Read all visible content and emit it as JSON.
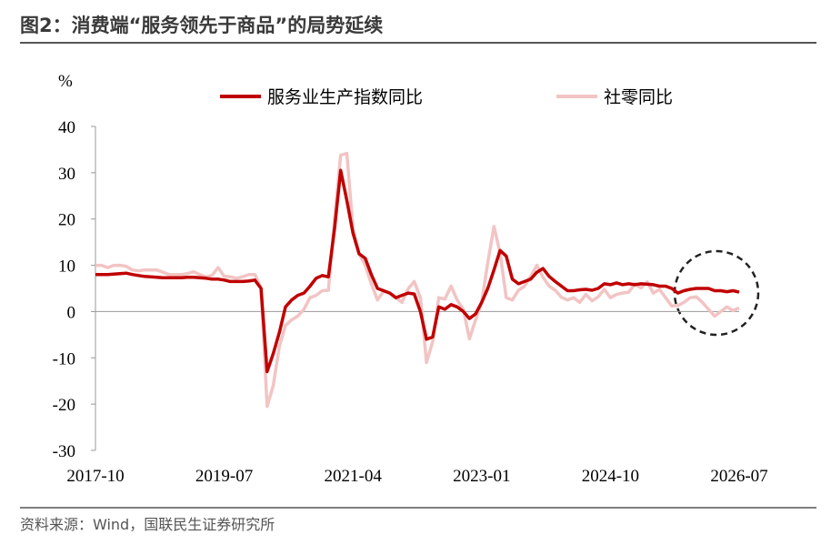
{
  "header": {
    "title": "图2：消费端“服务领先于商品”的局势延续"
  },
  "chart_data": {
    "type": "line",
    "y_unit": "%",
    "categories": [
      "2017-10",
      null,
      null,
      null,
      null,
      null,
      null,
      null,
      null,
      null,
      null,
      null,
      null,
      null,
      null,
      null,
      null,
      null,
      null,
      null,
      null,
      "2019-07",
      null,
      null,
      null,
      null,
      null,
      null,
      null,
      null,
      null,
      null,
      null,
      null,
      null,
      null,
      null,
      null,
      null,
      null,
      null,
      null,
      "2021-04",
      null,
      null,
      null,
      null,
      null,
      null,
      null,
      null,
      null,
      null,
      null,
      null,
      null,
      null,
      null,
      null,
      null,
      null,
      null,
      null,
      "2023-01",
      null,
      null,
      null,
      null,
      null,
      null,
      null,
      null,
      null,
      null,
      null,
      null,
      null,
      null,
      null,
      null,
      null,
      null,
      null,
      null,
      "2024-10",
      null,
      null,
      null,
      null,
      null,
      null,
      null,
      null,
      null,
      null,
      null,
      null,
      null,
      null,
      null,
      null,
      null,
      null,
      null,
      null,
      "2026-07"
    ],
    "series": [
      {
        "name": "服务业生产指数同比",
        "color": "#c00000",
        "values": [
          8,
          8,
          8,
          8.1,
          8.2,
          8.3,
          8,
          7.8,
          7.6,
          7.5,
          7.4,
          7.3,
          7.3,
          7.3,
          7.3,
          7.4,
          7.4,
          7.3,
          7.2,
          7.0,
          7.0,
          6.8,
          6.5,
          6.5,
          6.5,
          6.6,
          6.8,
          5,
          -13,
          -9.1,
          -4.5,
          1,
          2.5,
          3.5,
          4,
          5.5,
          7.2,
          7.8,
          7.5,
          18,
          30.5,
          24,
          17,
          12.5,
          11.5,
          8,
          5,
          4.5,
          4,
          3,
          3.5,
          4,
          3.8,
          0,
          -6,
          -5.5,
          1,
          0.5,
          1.5,
          1,
          0,
          -1.5,
          -0.5,
          2,
          5,
          9,
          13.2,
          12,
          7,
          6,
          6.5,
          7,
          8.5,
          9.3,
          7.6,
          6.5,
          5.5,
          4.5,
          4.5,
          4.7,
          4.8,
          4.6,
          5,
          6,
          5.8,
          6.2,
          5.8,
          6,
          5.8,
          6,
          5.9,
          5.8,
          5.5,
          5.5,
          5,
          4,
          4.5,
          4.8,
          5,
          5,
          5,
          4.5,
          4.5,
          4.3,
          4.5,
          4.2
        ]
      },
      {
        "name": "社零同比",
        "color": "#f2c4c4",
        "values": [
          10,
          10,
          9.5,
          10,
          10,
          9.8,
          9,
          8.8,
          9,
          9,
          9,
          8.5,
          8,
          8,
          8,
          8.2,
          8.6,
          8,
          7.5,
          7.8,
          9.5,
          7.6,
          7.5,
          7.2,
          7.5,
          8,
          8,
          5,
          -20.5,
          -16,
          -7.5,
          -3,
          -1.8,
          -1,
          0.5,
          3,
          3.5,
          4.5,
          4.6,
          20,
          33.8,
          34.2,
          18,
          12.5,
          10,
          6,
          2.5,
          4.4,
          4,
          3,
          2,
          4.9,
          6.5,
          3,
          -11,
          -6.5,
          3,
          2.7,
          5.5,
          2.5,
          0.5,
          -5.9,
          -1.8,
          2,
          10.6,
          18.4,
          12.7,
          3,
          2.5,
          4.6,
          5.5,
          7.6,
          10,
          7.4,
          5.5,
          4.6,
          3.1,
          2.5,
          3,
          2,
          3.7,
          2.3,
          3.2,
          4.8,
          3,
          3.7,
          4,
          4.2,
          6,
          5.1,
          6.4,
          4,
          4.8,
          3,
          1.2,
          1.3,
          2,
          3,
          3.2,
          2,
          0.5,
          -1,
          0,
          1,
          0.2,
          0.8
        ]
      }
    ],
    "ylim": [
      -30,
      40
    ],
    "yticks": [
      -30,
      -20,
      -10,
      0,
      10,
      20,
      30,
      40
    ],
    "legend": "top"
  },
  "footer": {
    "source": "资料来源：Wind，国联民生证券研究所"
  }
}
